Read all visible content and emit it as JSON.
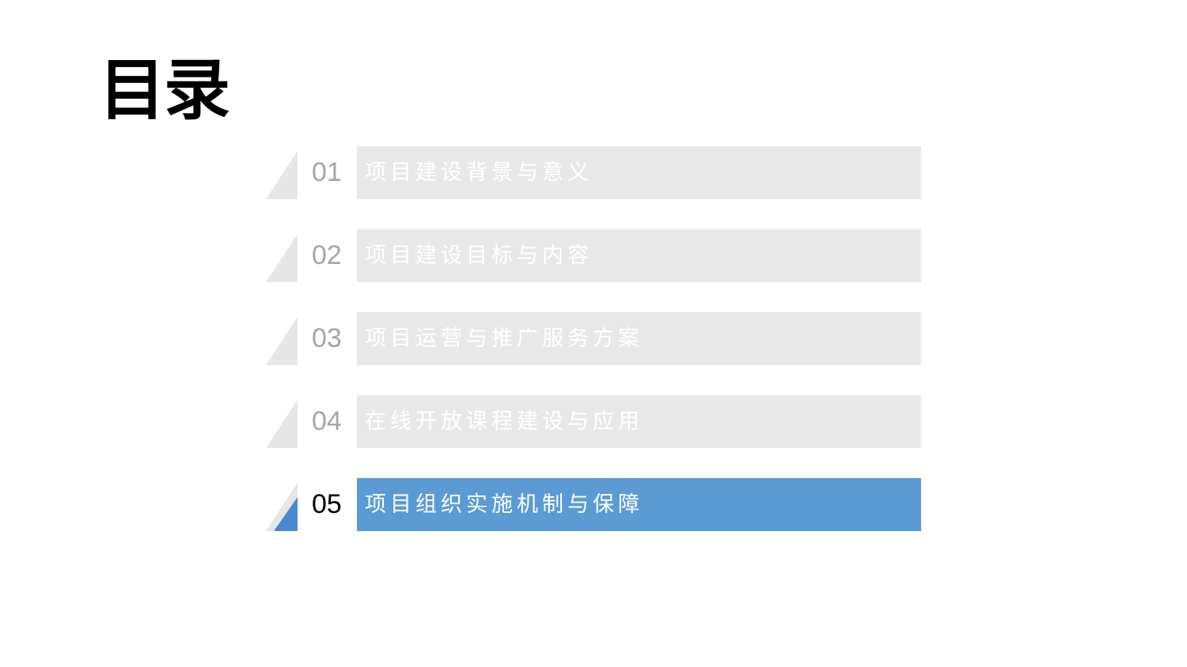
{
  "title": "目录",
  "colors": {
    "inactive_bar": "#e8e8e8",
    "active_bar": "#5b9bd5",
    "inactive_number": "#a6a6a6",
    "active_number": "#000000",
    "triangle_grey": "#e6e6e6",
    "triangle_accent": "#4a89d0"
  },
  "items": [
    {
      "number": "01",
      "label": "项目建设背景与意义",
      "active": false
    },
    {
      "number": "02",
      "label": "项目建设目标与内容",
      "active": false
    },
    {
      "number": "03",
      "label": "项目运营与推广服务方案",
      "active": false
    },
    {
      "number": "04",
      "label": "在线开放课程建设与应用",
      "active": false
    },
    {
      "number": "05",
      "label": "项目组织实施机制与保障",
      "active": true
    }
  ]
}
